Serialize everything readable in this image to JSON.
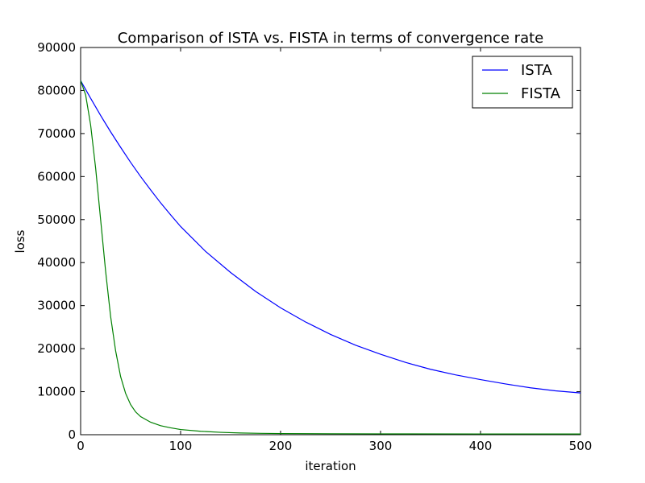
{
  "chart_data": {
    "type": "line",
    "title": "Comparison of ISTA vs. FISTA in terms of convergence rate",
    "xlabel": "iteration",
    "ylabel": "loss",
    "xlim": [
      0,
      500
    ],
    "ylim": [
      0,
      90000
    ],
    "xticks": [
      0,
      100,
      200,
      300,
      400,
      500
    ],
    "yticks": [
      0,
      10000,
      20000,
      30000,
      40000,
      50000,
      60000,
      70000,
      80000,
      90000
    ],
    "grid": false,
    "legend_position": "top-right",
    "series": [
      {
        "name": "ISTA",
        "color": "#0000ff",
        "x": [
          0,
          10,
          20,
          30,
          40,
          50,
          60,
          70,
          80,
          90,
          100,
          125,
          150,
          175,
          200,
          225,
          250,
          275,
          300,
          325,
          350,
          375,
          400,
          425,
          450,
          475,
          500
        ],
        "y": [
          82300,
          78200,
          74200,
          70400,
          66800,
          63300,
          60000,
          56900,
          53900,
          51100,
          48400,
          42600,
          37700,
          33300,
          29500,
          26200,
          23300,
          20800,
          18700,
          16800,
          15200,
          13900,
          12800,
          11800,
          10900,
          10200,
          9700
        ]
      },
      {
        "name": "FISTA",
        "color": "#008000",
        "x": [
          0,
          5,
          10,
          15,
          20,
          25,
          30,
          35,
          40,
          45,
          50,
          55,
          60,
          70,
          80,
          90,
          100,
          120,
          140,
          160,
          180,
          200,
          250,
          300,
          400,
          500
        ],
        "y": [
          82300,
          79000,
          72000,
          62000,
          50000,
          38000,
          27500,
          19500,
          13500,
          9600,
          7000,
          5300,
          4200,
          2900,
          2100,
          1600,
          1200,
          800,
          550,
          400,
          320,
          270,
          220,
          200,
          180,
          170
        ]
      }
    ]
  }
}
